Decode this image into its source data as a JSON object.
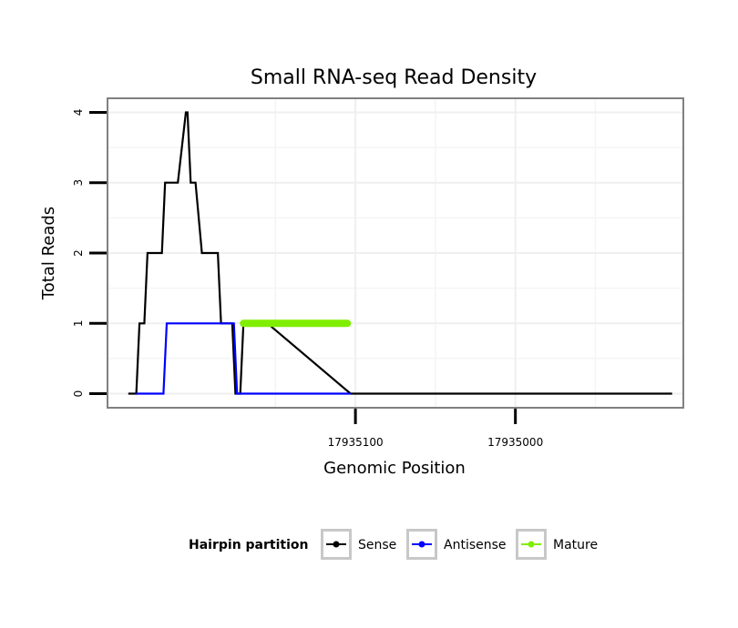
{
  "chart_data": {
    "type": "line",
    "title": "Small RNA-seq Read Density",
    "xlabel": "Genomic Position",
    "ylabel": "Total Reads",
    "xlim": [
      17935255,
      17934895
    ],
    "ylim": [
      -0.2,
      4.2
    ],
    "x_reversed": true,
    "x_ticks": [
      17935100,
      17935000
    ],
    "x_tick_labels": [
      "17935100",
      "17935000"
    ],
    "y_ticks": [
      0,
      1,
      2,
      3,
      4
    ],
    "y_tick_labels": [
      "0",
      "1",
      "2",
      "3",
      "4"
    ],
    "grid": true,
    "legend_position": "bottom",
    "legend_title": "Hairpin partition",
    "colors": {
      "Sense": "#000000",
      "Antisense": "#0000ff",
      "Mature": "#80ee00"
    },
    "series": [
      {
        "name": "Sense",
        "x": [
          17935242,
          17935237,
          17935235,
          17935232,
          17935230,
          17935221,
          17935219,
          17935213,
          17935211,
          17935206,
          17935205,
          17935203,
          17935200,
          17935196,
          17935194,
          17935186,
          17935184,
          17935177,
          17935175,
          17935172,
          17935170,
          17935166,
          17935164,
          17935155,
          17935103,
          17934902
        ],
        "values": [
          0,
          0,
          1,
          1,
          2,
          2,
          3,
          3,
          3,
          4,
          4,
          3,
          3,
          2,
          2,
          2,
          1,
          1,
          0,
          0,
          1,
          1,
          1,
          1,
          0,
          0
        ]
      },
      {
        "name": "Antisense",
        "x": [
          17935237,
          17935220,
          17935218,
          17935198,
          17935176,
          17935174,
          17935103
        ],
        "values": [
          0,
          0,
          1,
          1,
          1,
          0,
          0
        ]
      },
      {
        "name": "Mature",
        "x": [
          17935170,
          17935105
        ],
        "values": [
          1,
          1
        ]
      }
    ]
  }
}
